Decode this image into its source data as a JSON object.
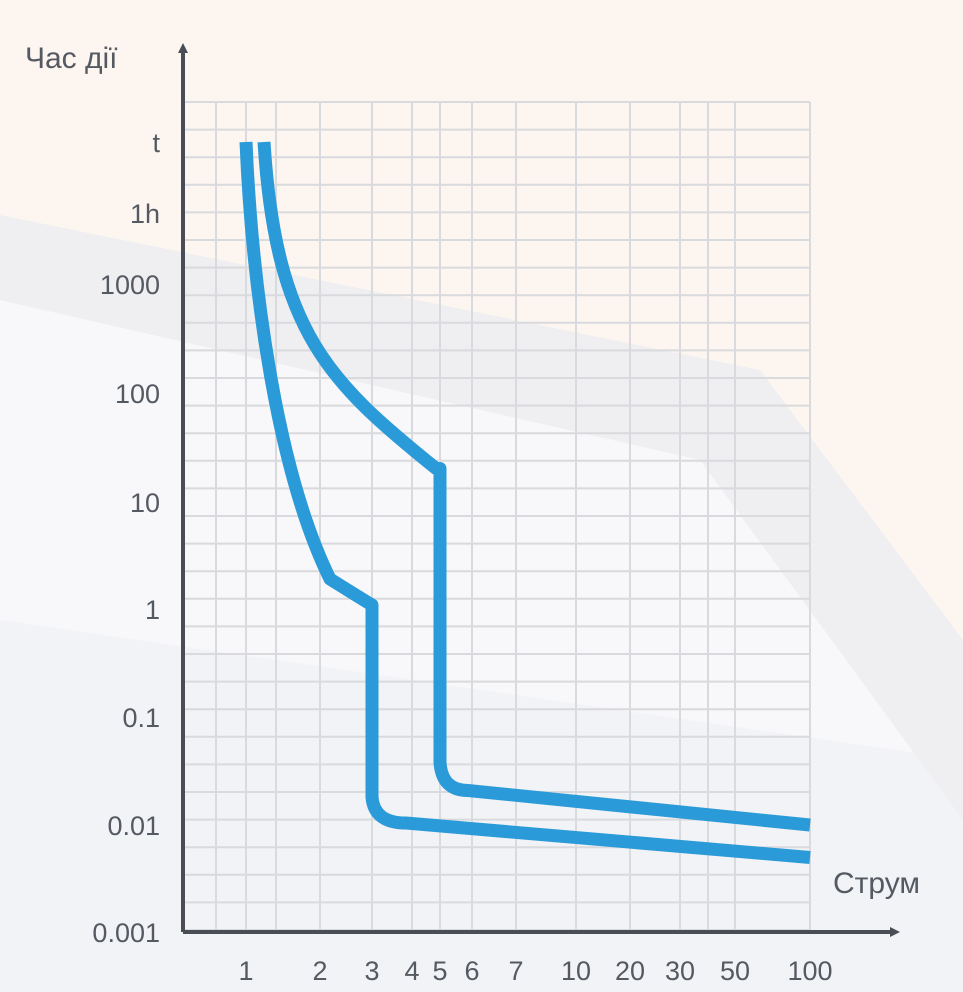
{
  "chart_data": {
    "type": "line",
    "title": "",
    "ylabel": "Час дії",
    "xlabel": "Струм",
    "x_tick_labels": [
      "1",
      "2",
      "3",
      "4",
      "5",
      "6",
      "7",
      "10",
      "20",
      "30",
      "50",
      "100"
    ],
    "y_tick_labels": [
      "t",
      "1h",
      "1000",
      "100",
      "10",
      "1",
      "0.1",
      "0.01",
      "0.001"
    ],
    "grid": true,
    "legend": "none",
    "colors": {
      "curve": "#2b9ad8",
      "axis": "#4a4d55",
      "grid": "#d9dadd",
      "text": "#555a62"
    },
    "series": [
      {
        "points": [
          {
            "x": "1",
            "y": "t"
          },
          {
            "x": "1",
            "y": "1000"
          },
          {
            "x": "2",
            "y": "1"
          },
          {
            "x": "3",
            "y": "1"
          },
          {
            "x": "3",
            "y": "0.01"
          },
          {
            "x": "100",
            "y": "0.005"
          }
        ]
      },
      {
        "points": [
          {
            "x": "1",
            "y": "t"
          },
          {
            "x": "2",
            "y": "100"
          },
          {
            "x": "5",
            "y": "20"
          },
          {
            "x": "5",
            "y": "0.02"
          },
          {
            "x": "100",
            "y": "0.01"
          }
        ]
      }
    ]
  }
}
